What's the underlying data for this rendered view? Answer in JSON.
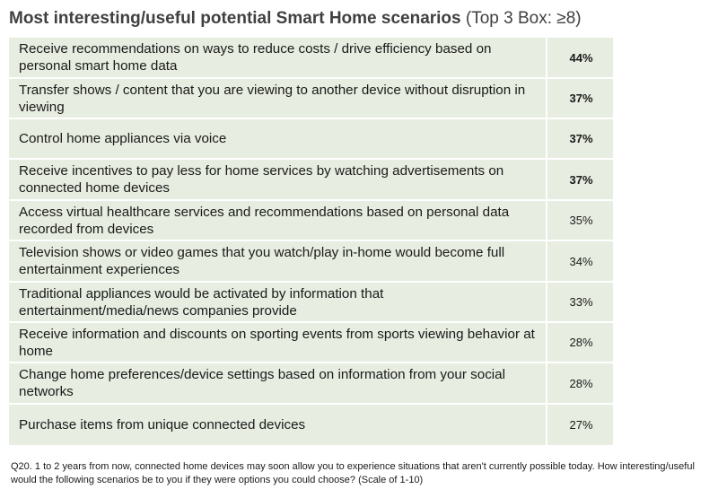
{
  "chart_data": {
    "type": "table",
    "title": "Most interesting/useful potential Smart Home scenarios",
    "subtitle": "(Top 3 Box: ≥8)",
    "rows": [
      {
        "label": "Receive recommendations on ways to reduce costs / drive efficiency based on personal smart home data",
        "value": 44,
        "display": "44%",
        "bold": true
      },
      {
        "label": "Transfer shows / content that you are viewing to another device without disruption in viewing",
        "value": 37,
        "display": "37%",
        "bold": true
      },
      {
        "label": "Control home appliances via voice",
        "value": 37,
        "display": "37%",
        "bold": true
      },
      {
        "label": "Receive incentives to pay less for home services by watching advertisements on connected home devices",
        "value": 37,
        "display": "37%",
        "bold": true
      },
      {
        "label": "Access virtual healthcare services and recommendations based on personal data recorded from devices",
        "value": 35,
        "display": "35%",
        "bold": false
      },
      {
        "label": "Television shows or video games that you watch/play in-home would become full entertainment experiences",
        "value": 34,
        "display": "34%",
        "bold": false
      },
      {
        "label": "Traditional appliances would be activated by information that entertainment/media/news companies provide",
        "value": 33,
        "display": "33%",
        "bold": false
      },
      {
        "label": "Receive information and discounts on sporting events from sports viewing behavior at home",
        "value": 28,
        "display": "28%",
        "bold": false
      },
      {
        "label": "Change home preferences/device settings based on information from your social networks",
        "value": 28,
        "display": "28%",
        "bold": false
      },
      {
        "label": "Purchase items from unique connected devices",
        "value": 27,
        "display": "27%",
        "bold": false
      }
    ],
    "unit": "%",
    "footnote": "Q20.  1 to 2 years from now, connected home devices may soon allow you to experience situations that aren't currently possible today.  How interesting/useful would the following scenarios be to you if they were options you could choose? (Scale of 1-10)"
  },
  "colors": {
    "cell_background": "#e7ede0",
    "divider": "#ffffff",
    "title": "#404040"
  }
}
